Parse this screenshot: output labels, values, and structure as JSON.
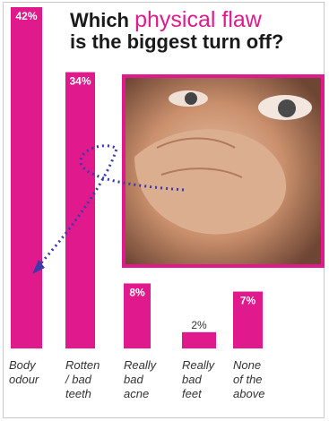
{
  "title_part1": "Which ",
  "title_highlight": "physical flaw",
  "title_part2": "is the biggest turn off?",
  "colors": {
    "bar": "#e01a8d",
    "photo_border": "#e01a8d",
    "arrow": "#3a3aa8"
  },
  "chart_data": {
    "type": "bar",
    "categories": [
      [
        "Body",
        "odour"
      ],
      [
        "Rotten",
        "/ bad",
        "teeth"
      ],
      [
        "Really",
        "bad",
        "acne"
      ],
      [
        "Really",
        "bad",
        "feet"
      ],
      [
        "None",
        "of the",
        "above"
      ]
    ],
    "values": [
      42,
      34,
      8,
      2,
      7
    ],
    "value_labels": [
      "42%",
      "34%",
      "8%",
      "2%",
      "7%"
    ],
    "ylim": [
      0,
      42
    ]
  }
}
